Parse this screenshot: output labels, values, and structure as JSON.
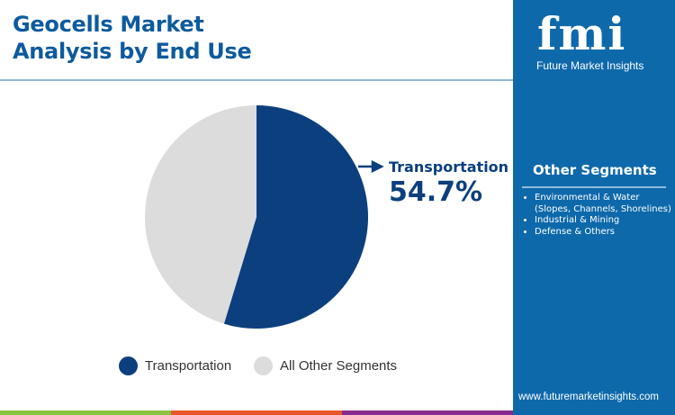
{
  "title_line1": "Geocells Market",
  "title_line2": "Analysis by End Use",
  "chart_data": {
    "type": "pie",
    "categories": [
      "Transportation",
      "All Other Segments"
    ],
    "values": [
      54.7,
      45.3
    ],
    "colors": [
      "#0b3f7e",
      "#dcdcdc"
    ],
    "callout": {
      "label": "Transportation",
      "value": "54.7%"
    },
    "legend": [
      "Transportation",
      "All Other Segments"
    ],
    "legend_placement": "bottom"
  },
  "panel": {
    "logo_text": "fmi",
    "logo_subtitle": "Future Market Insights",
    "other_segments_title": "Other Segments",
    "other_segments": [
      "Environmental & Water",
      "(Slopes, Channels, Shorelines)",
      "Industrial & Mining",
      "Defense & Others"
    ],
    "url": "www.futuremarketinsights.com",
    "background": "#0e69ab"
  },
  "bottom_bar_colors": [
    "#8cc43f",
    "#e8572a",
    "#8a2b8e"
  ]
}
